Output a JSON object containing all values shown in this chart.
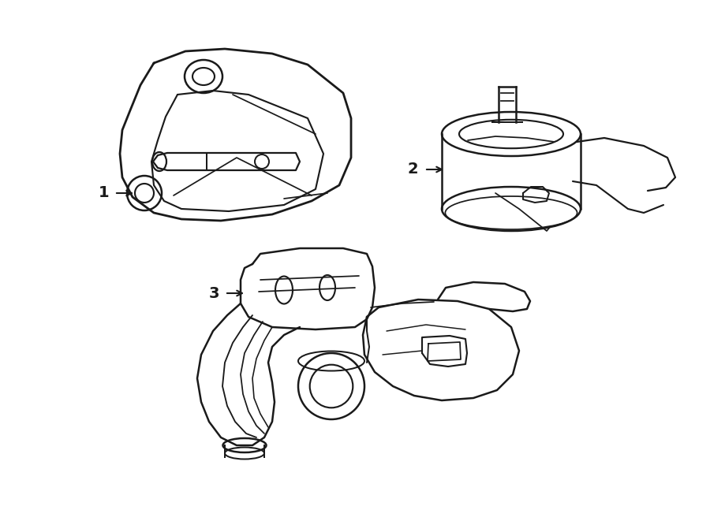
{
  "background_color": "#ffffff",
  "line_color": "#1a1a1a",
  "line_width": 1.8,
  "label_fontsize": 14,
  "figsize": [
    9.0,
    6.61
  ],
  "dpi": 100
}
